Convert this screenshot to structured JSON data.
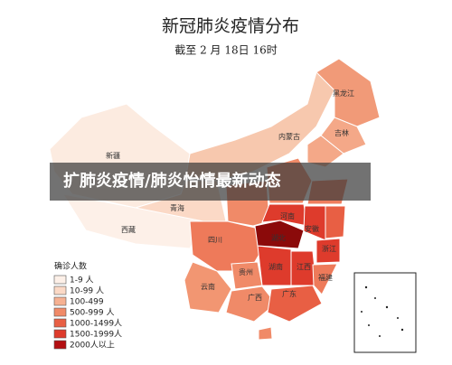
{
  "title": "新冠肺炎疫情分布",
  "subtitle": "截至 2 月 18日 16时",
  "banner": "扩肺炎疫情/肺炎怡情最新动态",
  "legend": {
    "title": "确诊人数",
    "items": [
      {
        "label": "1-9 人",
        "color": "#fdf0e8"
      },
      {
        "label": "10-99 人",
        "color": "#fbd9c6"
      },
      {
        "label": "100-499",
        "color": "#f6b192"
      },
      {
        "label": "500-999 人",
        "color": "#f08a68"
      },
      {
        "label": "1000-1499人",
        "color": "#e85f44"
      },
      {
        "label": "1500-1999人",
        "color": "#de3b2c"
      },
      {
        "label": "2000人以上",
        "color": "#b30f12"
      }
    ]
  },
  "provinces": [
    "新疆",
    "西藏",
    "青海",
    "内蒙古",
    "黑龙江",
    "吉林",
    "四川",
    "云南",
    "贵州",
    "广西",
    "广东",
    "湖南",
    "湖北",
    "河南",
    "江西",
    "安徽",
    "浙江",
    "福建"
  ]
}
